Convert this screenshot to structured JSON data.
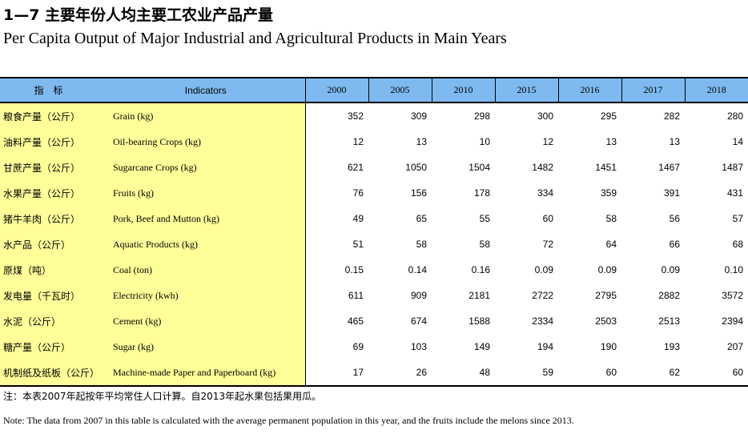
{
  "title": {
    "cn": "1—7  主要年份人均主要工农业产品产量",
    "en": "Per Capita Output of Major Industrial and Agricultural Products in Main Years"
  },
  "table": {
    "header": {
      "indicator_cn": "指标",
      "indicator_en": "Indicators",
      "years": [
        "2000",
        "2005",
        "2010",
        "2015",
        "2016",
        "2017",
        "2018"
      ]
    },
    "rows": [
      {
        "cn": "粮食产量（公斤）",
        "en": "Grain (kg)",
        "values": [
          "352",
          "309",
          "298",
          "300",
          "295",
          "282",
          "280"
        ]
      },
      {
        "cn": "油料产量（公斤）",
        "en": "Oil-bearing Crops (kg)",
        "values": [
          "12",
          "13",
          "10",
          "12",
          "13",
          "13",
          "14"
        ]
      },
      {
        "cn": "甘蔗产量（公斤）",
        "en": "Sugarcane  Crops (kg)",
        "values": [
          "621",
          "1050",
          "1504",
          "1482",
          "1451",
          "1467",
          "1487"
        ]
      },
      {
        "cn": "水果产量（公斤）",
        "en": "Fruits (kg)",
        "values": [
          "76",
          "156",
          "178",
          "334",
          "359",
          "391",
          "431"
        ]
      },
      {
        "cn": "猪牛羊肉（公斤）",
        "en": "Pork, Beef and Mutton (kg)",
        "values": [
          "49",
          "65",
          "55",
          "60",
          "58",
          "56",
          "57"
        ]
      },
      {
        "cn": "水产品（公斤）",
        "en": "Aquatic Products (kg)",
        "values": [
          "51",
          "58",
          "58",
          "72",
          "64",
          "66",
          "68"
        ]
      },
      {
        "cn": "原煤（吨）",
        "en": "Coal (ton)",
        "values": [
          "0.15",
          "0.14",
          "0.16",
          "0.09",
          "0.09",
          "0.09",
          "0.10"
        ]
      },
      {
        "cn": "发电量（千瓦时）",
        "en": "Electricity (kwh)",
        "values": [
          "611",
          "909",
          "2181",
          "2722",
          "2795",
          "2882",
          "3572"
        ]
      },
      {
        "cn": "水泥（公斤）",
        "en": "Cement (kg)",
        "values": [
          "465",
          "674",
          "1588",
          "2334",
          "2503",
          "2513",
          "2394"
        ]
      },
      {
        "cn": "糖产量（公斤）",
        "en": "Sugar (kg)",
        "values": [
          "69",
          "103",
          "149",
          "194",
          "190",
          "193",
          "207"
        ]
      },
      {
        "cn": "机制纸及纸板（公斤）",
        "en": "Machine-made Paper and Paperboard (kg)",
        "values": [
          "17",
          "26",
          "48",
          "59",
          "60",
          "62",
          "60"
        ]
      }
    ]
  },
  "notes": {
    "cn": "注：本表2007年起按年平均常住人口计算。自2013年起水果包括果用瓜。",
    "en": "Note: The data from 2007 in this table is calculated with the average permanent population in this year, and the fruits include the melons since 2013."
  },
  "colors": {
    "header_bg": "#7EBAF0",
    "indicator_bg": "#FFFF99"
  }
}
